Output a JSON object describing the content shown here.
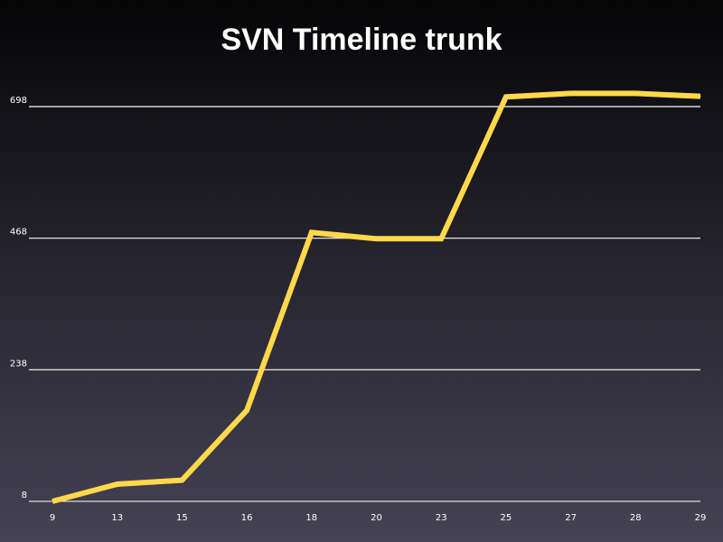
{
  "chart_data": {
    "type": "line",
    "title": "SVN Timeline trunk",
    "xlabel": "",
    "ylabel": "",
    "categories": [
      "9",
      "13",
      "15",
      "16",
      "18",
      "20",
      "23",
      "25",
      "27",
      "28",
      "29"
    ],
    "series": [
      {
        "values": [
          8,
          38,
          45,
          167,
          478,
          467,
          467,
          715,
          721,
          721,
          716
        ]
      }
    ],
    "yticks": [
      8,
      238,
      468,
      698
    ],
    "ylim": [
      8,
      698
    ],
    "grid": true,
    "legend": "none",
    "colors": {
      "line": "#ffd94a",
      "grid": "#ffffff",
      "text": "#ffffff"
    }
  }
}
